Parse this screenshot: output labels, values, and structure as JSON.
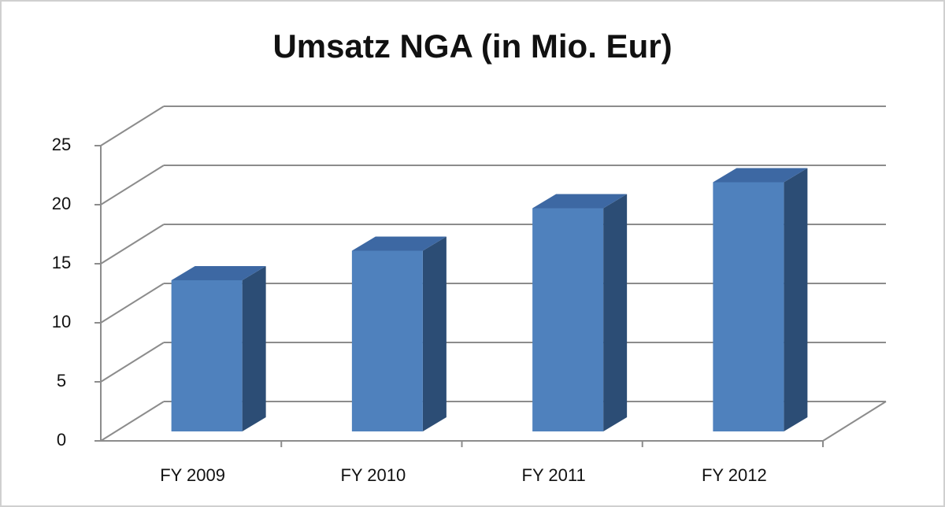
{
  "chart_data": {
    "type": "bar",
    "title": "Umsatz NGA (in Mio. Eur)",
    "categories": [
      "FY 2009",
      "FY 2010",
      "FY 2011",
      "FY 2012"
    ],
    "values": [
      12.8,
      15.3,
      18.9,
      21.1
    ],
    "color": "#4f81bd",
    "ylim": [
      0,
      25
    ],
    "yticks": [
      0,
      5,
      10,
      15,
      20,
      25
    ],
    "grid": true
  }
}
